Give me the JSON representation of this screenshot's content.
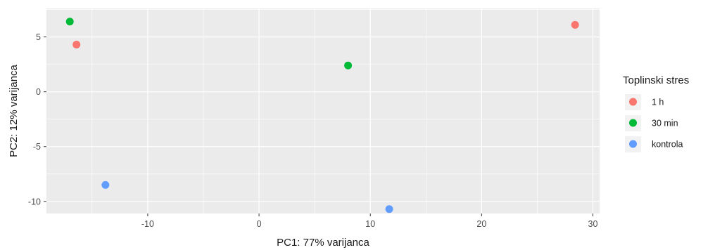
{
  "chart_data": {
    "type": "scatter",
    "xlabel": "PC1: 77% varijanca",
    "ylabel": "PC2: 12% varijanca",
    "xlim": [
      -19.1,
      30.6
    ],
    "ylim": [
      -11.1,
      7.6
    ],
    "x_ticks": [
      -10,
      0,
      10,
      20,
      30
    ],
    "y_ticks": [
      5,
      0,
      -5,
      -10
    ],
    "x_minor_ticks": [
      -15,
      -5,
      5,
      15,
      25
    ],
    "y_minor_ticks": [
      7.5,
      2.5,
      -2.5,
      -7.5
    ],
    "grid": true,
    "background": "#ebebeb",
    "legend": {
      "title": "Toplinski stres",
      "position": "right"
    },
    "series": [
      {
        "name": "1 h",
        "color": "#F8766D",
        "points": [
          {
            "x": -16.4,
            "y": 4.3
          },
          {
            "x": 28.4,
            "y": 6.1
          }
        ]
      },
      {
        "name": "30 min",
        "color": "#00BA38",
        "points": [
          {
            "x": -17.0,
            "y": 6.4
          },
          {
            "x": 8.0,
            "y": 2.4
          }
        ]
      },
      {
        "name": "kontrola",
        "color": "#619CFF",
        "points": [
          {
            "x": -13.8,
            "y": -8.5
          },
          {
            "x": 11.7,
            "y": -10.7
          }
        ]
      }
    ]
  }
}
